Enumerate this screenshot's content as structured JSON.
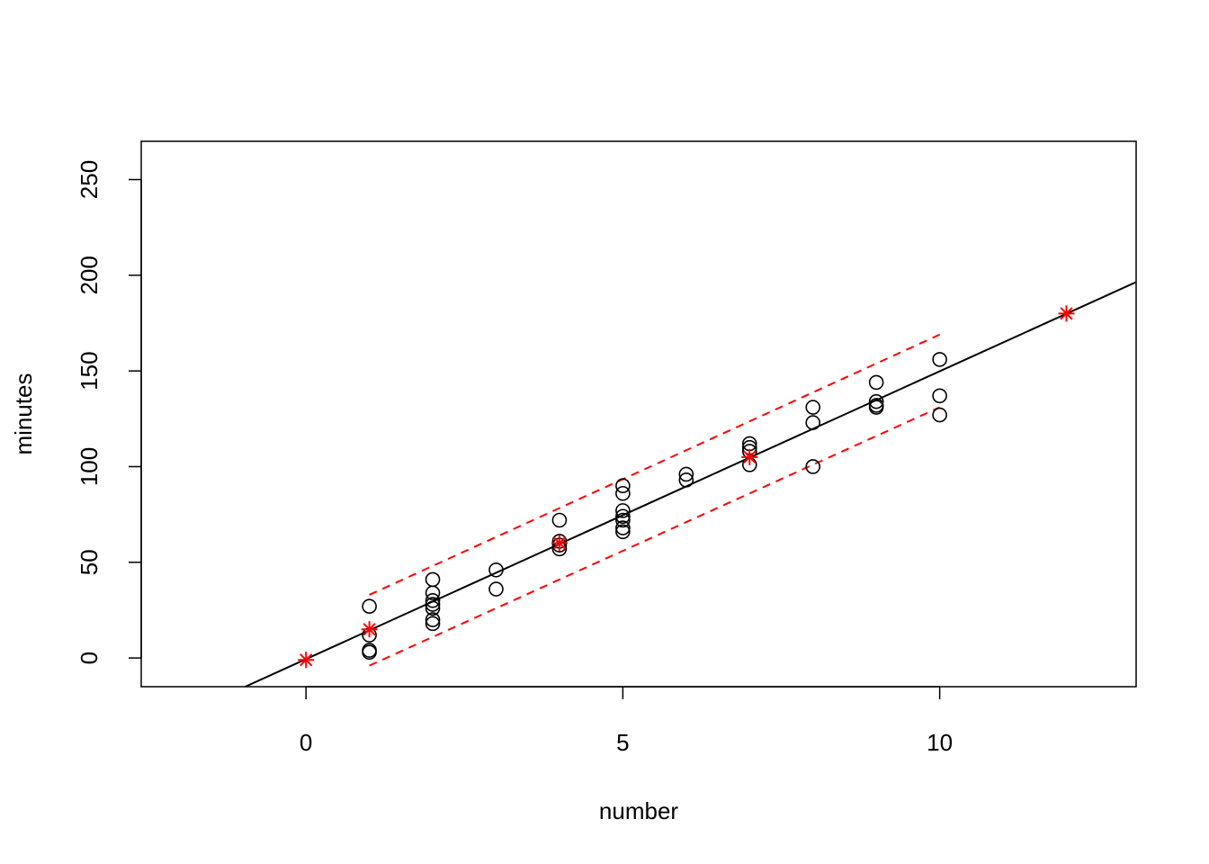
{
  "chart_data": {
    "type": "scatter",
    "xlabel": "number",
    "ylabel": "minutes",
    "xlim": [
      -2.6,
      13.1
    ],
    "ylim": [
      -15,
      270
    ],
    "x_ticks": [
      0,
      5,
      10
    ],
    "y_ticks": [
      0,
      50,
      100,
      150,
      200,
      250
    ],
    "x_tick_labels": [
      "0",
      "5",
      "10"
    ],
    "y_tick_labels": [
      "0",
      "50",
      "100",
      "150",
      "200",
      "250"
    ],
    "grid": false,
    "legend": "none",
    "colors": {
      "points": "#000000",
      "fit": "#000000",
      "band": "#ff0000",
      "predicted": "#ff0000"
    },
    "observed_points": [
      [
        1,
        27
      ],
      [
        1,
        12
      ],
      [
        1,
        4
      ],
      [
        1,
        3
      ],
      [
        2,
        41
      ],
      [
        2,
        34
      ],
      [
        2,
        30
      ],
      [
        2,
        28
      ],
      [
        2,
        26
      ],
      [
        2,
        20
      ],
      [
        2,
        18
      ],
      [
        3,
        46
      ],
      [
        3,
        36
      ],
      [
        4,
        72
      ],
      [
        4,
        61
      ],
      [
        4,
        59
      ],
      [
        4,
        57
      ],
      [
        5,
        90
      ],
      [
        5,
        86
      ],
      [
        5,
        77
      ],
      [
        5,
        74
      ],
      [
        5,
        72
      ],
      [
        5,
        68
      ],
      [
        5,
        66
      ],
      [
        6,
        96
      ],
      [
        6,
        93
      ],
      [
        7,
        112
      ],
      [
        7,
        110
      ],
      [
        7,
        108
      ],
      [
        7,
        101
      ],
      [
        8,
        131
      ],
      [
        8,
        123
      ],
      [
        8,
        100
      ],
      [
        9,
        144
      ],
      [
        9,
        134
      ],
      [
        9,
        132
      ],
      [
        9,
        131
      ],
      [
        10,
        156
      ],
      [
        10,
        137
      ],
      [
        10,
        127
      ]
    ],
    "fit_line": {
      "intercept": -0.58,
      "slope": 15.04,
      "x_range": [
        -2.6,
        13.1
      ]
    },
    "prediction_band": {
      "upper": [
        [
          1,
          33
        ],
        [
          10,
          169
        ]
      ],
      "lower": [
        [
          1,
          -4
        ],
        [
          10,
          131
        ]
      ]
    },
    "predicted_points": [
      [
        0,
        -1
      ],
      [
        1,
        15
      ],
      [
        4,
        60
      ],
      [
        7,
        105
      ],
      [
        12,
        180
      ]
    ]
  }
}
